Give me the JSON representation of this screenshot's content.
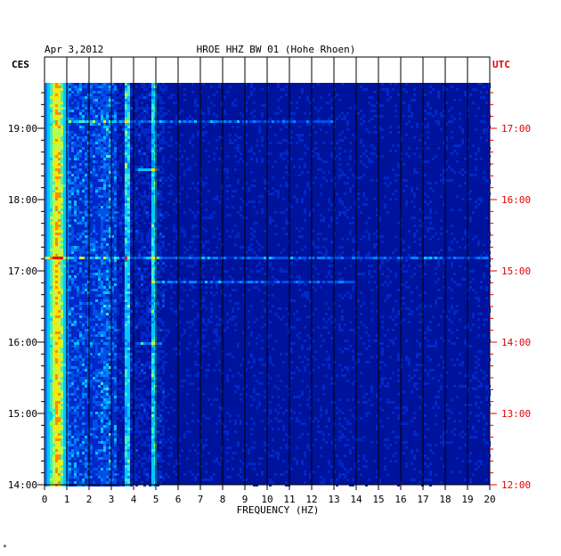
{
  "chart_data": {
    "type": "heatmap",
    "title": "HROE HHZ BW 01 (Hohe Rhoen)",
    "date": "Apr 3,2012",
    "left_zone": "CES",
    "right_zone": "UTC",
    "xlabel": "FREQUENCY (HZ)",
    "xlim": [
      0,
      20
    ],
    "x_ticks": [
      "0",
      "1",
      "2",
      "3",
      "4",
      "5",
      "6",
      "7",
      "8",
      "9",
      "10",
      "11",
      "12",
      "13",
      "14",
      "15",
      "16",
      "17",
      "18",
      "19",
      "20"
    ],
    "left_time_ticks": [
      "19:00",
      "18:00",
      "17:00",
      "16:00",
      "15:00",
      "14:00"
    ],
    "right_time_ticks": [
      "17:00",
      "16:00",
      "15:00",
      "14:00",
      "13:00",
      "12:00"
    ],
    "tick_hours_local": [
      19,
      18,
      17,
      16,
      15,
      14
    ],
    "ylim_local_hours": [
      14.0,
      19.65
    ],
    "colors": {
      "background": "#00139c",
      "right_labels": "#e00000",
      "frame": "#000000"
    },
    "spectral_bands": [
      {
        "f_from": 0.2,
        "f_to": 1.0,
        "level": "high"
      },
      {
        "f_from": 1.0,
        "f_to": 3.2,
        "level": "medium"
      },
      {
        "f_from": 3.2,
        "f_to": 5.3,
        "level": "low-medium"
      },
      {
        "f_from": 5.3,
        "f_to": 20.0,
        "level": "low"
      }
    ],
    "spectral_lines_hz": [
      3.7,
      4.9
    ],
    "events": [
      {
        "time_local": 18.45,
        "f_from": 4.0,
        "f_to": 5.0
      },
      {
        "time_local": 17.2,
        "f_from": 0.0,
        "f_to": 20.0
      },
      {
        "time_local": 16.85,
        "f_from": 4.8,
        "f_to": 14.0
      },
      {
        "time_local": 16.0,
        "f_from": 4.0,
        "f_to": 5.2
      },
      {
        "time_local": 19.1,
        "f_from": 1.0,
        "f_to": 13.0
      }
    ],
    "footnote": "*"
  }
}
